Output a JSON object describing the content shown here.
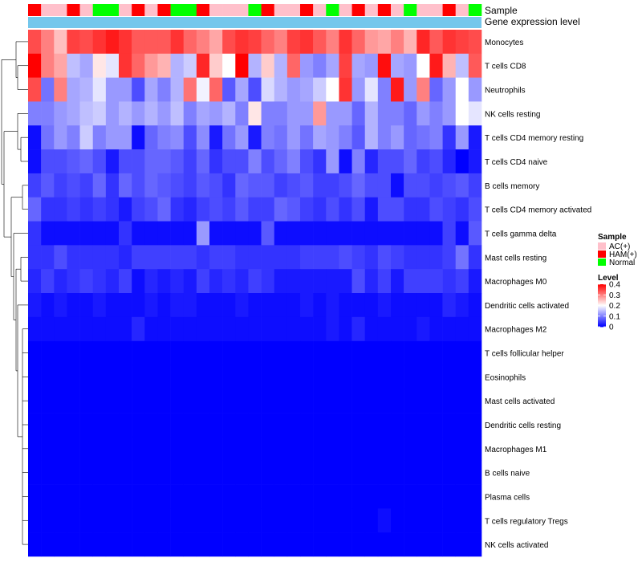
{
  "chart_data": {
    "type": "heatmap",
    "annotation_labels": {
      "sample": "Sample",
      "gene": "Gene expression level"
    },
    "rows": [
      "Monocytes",
      "T cells CD8",
      "Neutrophils",
      "NK cells resting",
      "T cells CD4 memory resting",
      "T cells CD4 naive",
      "B cells memory",
      "T cells CD4 memory activated",
      "T cells gamma delta",
      "Mast cells resting",
      "Macrophages M0",
      "Dendritic cells activated",
      "Macrophages M2",
      "T cells follicular helper",
      "Eosinophils",
      "Mast cells activated",
      "Dendritic cells resting",
      "Macrophages M1",
      "B cells naive",
      "Plasma cells",
      "T cells regulatory  Tregs",
      "NK cells activated"
    ],
    "sample_groups": [
      "HAM(+)",
      "AC(+)",
      "AC(+)",
      "HAM(+)",
      "AC(+)",
      "Normal",
      "Normal",
      "AC(+)",
      "HAM(+)",
      "AC(+)",
      "HAM(+)",
      "Normal",
      "Normal",
      "HAM(+)",
      "AC(+)",
      "AC(+)",
      "AC(+)",
      "Normal",
      "HAM(+)",
      "AC(+)",
      "AC(+)",
      "HAM(+)",
      "AC(+)",
      "Normal",
      "AC(+)",
      "HAM(+)",
      "AC(+)",
      "HAM(+)",
      "AC(+)",
      "Normal",
      "AC(+)",
      "AC(+)",
      "HAM(+)",
      "AC(+)",
      "Normal"
    ],
    "values": [
      [
        0.34,
        0.3,
        0.25,
        0.35,
        0.34,
        0.36,
        0.38,
        0.36,
        0.33,
        0.33,
        0.33,
        0.36,
        0.32,
        0.3,
        0.27,
        0.34,
        0.36,
        0.35,
        0.32,
        0.3,
        0.35,
        0.36,
        0.33,
        0.3,
        0.36,
        0.32,
        0.28,
        0.27,
        0.3,
        0.26,
        0.37,
        0.33,
        0.36,
        0.35,
        0.34
      ],
      [
        0.4,
        0.3,
        0.27,
        0.15,
        0.13,
        0.22,
        0.18,
        0.36,
        0.32,
        0.28,
        0.26,
        0.14,
        0.16,
        0.37,
        0.24,
        0.2,
        0.4,
        0.14,
        0.24,
        0.14,
        0.32,
        0.12,
        0.1,
        0.13,
        0.35,
        0.13,
        0.12,
        0.39,
        0.13,
        0.12,
        0.2,
        0.38,
        0.26,
        0.15,
        0.33
      ],
      [
        0.34,
        0.09,
        0.3,
        0.13,
        0.14,
        0.18,
        0.12,
        0.12,
        0.06,
        0.13,
        0.1,
        0.14,
        0.31,
        0.19,
        0.32,
        0.07,
        0.13,
        0.06,
        0.17,
        0.14,
        0.12,
        0.13,
        0.16,
        0.2,
        0.36,
        0.12,
        0.18,
        0.1,
        0.38,
        0.12,
        0.3,
        0.08,
        0.12,
        0.2,
        0.12
      ],
      [
        0.1,
        0.1,
        0.12,
        0.13,
        0.15,
        0.16,
        0.12,
        0.14,
        0.12,
        0.14,
        0.12,
        0.15,
        0.1,
        0.13,
        0.12,
        0.14,
        0.1,
        0.22,
        0.1,
        0.1,
        0.12,
        0.12,
        0.28,
        0.12,
        0.12,
        0.08,
        0.14,
        0.1,
        0.1,
        0.08,
        0.12,
        0.1,
        0.12,
        0.2,
        0.18
      ],
      [
        0.01,
        0.09,
        0.12,
        0.1,
        0.16,
        0.1,
        0.12,
        0.12,
        0.01,
        0.08,
        0.1,
        0.11,
        0.06,
        0.11,
        0.02,
        0.09,
        0.12,
        0.02,
        0.1,
        0.09,
        0.12,
        0.09,
        0.13,
        0.12,
        0.1,
        0.07,
        0.14,
        0.1,
        0.12,
        0.08,
        0.09,
        0.1,
        0.04,
        0.12,
        0.02
      ],
      [
        0.01,
        0.06,
        0.06,
        0.07,
        0.08,
        0.06,
        0.02,
        0.06,
        0.06,
        0.08,
        0.08,
        0.07,
        0.05,
        0.08,
        0.04,
        0.06,
        0.06,
        0.1,
        0.06,
        0.08,
        0.1,
        0.06,
        0.04,
        0.12,
        0.01,
        0.1,
        0.03,
        0.06,
        0.06,
        0.08,
        0.05,
        0.06,
        0.03,
        0.0,
        0.02
      ],
      [
        0.05,
        0.07,
        0.05,
        0.06,
        0.05,
        0.08,
        0.04,
        0.08,
        0.06,
        0.08,
        0.07,
        0.06,
        0.05,
        0.07,
        0.06,
        0.04,
        0.08,
        0.07,
        0.07,
        0.05,
        0.06,
        0.07,
        0.05,
        0.05,
        0.06,
        0.08,
        0.06,
        0.06,
        0.01,
        0.06,
        0.06,
        0.05,
        0.06,
        0.07,
        0.05
      ],
      [
        0.08,
        0.04,
        0.04,
        0.05,
        0.04,
        0.05,
        0.04,
        0.02,
        0.05,
        0.06,
        0.08,
        0.04,
        0.03,
        0.05,
        0.06,
        0.05,
        0.07,
        0.05,
        0.05,
        0.08,
        0.07,
        0.05,
        0.04,
        0.06,
        0.04,
        0.06,
        0.02,
        0.06,
        0.06,
        0.04,
        0.04,
        0.06,
        0.05,
        0.04,
        0.06
      ],
      [
        0.04,
        0.01,
        0.01,
        0.01,
        0.01,
        0.01,
        0.01,
        0.04,
        0.01,
        0.01,
        0.01,
        0.01,
        0.01,
        0.12,
        0.01,
        0.01,
        0.01,
        0.01,
        0.07,
        0.01,
        0.01,
        0.01,
        0.01,
        0.01,
        0.01,
        0.01,
        0.01,
        0.01,
        0.01,
        0.01,
        0.01,
        0.01,
        0.05,
        0.01,
        0.07
      ],
      [
        0.04,
        0.04,
        0.06,
        0.04,
        0.04,
        0.04,
        0.04,
        0.03,
        0.05,
        0.05,
        0.05,
        0.05,
        0.05,
        0.04,
        0.05,
        0.05,
        0.04,
        0.04,
        0.04,
        0.04,
        0.04,
        0.05,
        0.05,
        0.05,
        0.06,
        0.05,
        0.04,
        0.06,
        0.05,
        0.04,
        0.04,
        0.04,
        0.05,
        0.09,
        0.04
      ],
      [
        0.03,
        0.05,
        0.03,
        0.04,
        0.05,
        0.04,
        0.03,
        0.05,
        0.01,
        0.03,
        0.02,
        0.03,
        0.02,
        0.05,
        0.03,
        0.04,
        0.03,
        0.05,
        0.04,
        0.02,
        0.02,
        0.02,
        0.02,
        0.02,
        0.02,
        0.06,
        0.03,
        0.05,
        0.02,
        0.05,
        0.05,
        0.05,
        0.04,
        0.05,
        0.02
      ],
      [
        0.02,
        0.01,
        0.02,
        0.01,
        0.01,
        0.02,
        0.01,
        0.01,
        0.01,
        0.02,
        0.01,
        0.02,
        0.02,
        0.01,
        0.01,
        0.01,
        0.02,
        0.01,
        0.01,
        0.01,
        0.01,
        0.02,
        0.01,
        0.02,
        0.01,
        0.01,
        0.01,
        0.02,
        0.01,
        0.01,
        0.01,
        0.01,
        0.03,
        0.02,
        0.01
      ],
      [
        0.01,
        0.01,
        0.01,
        0.01,
        0.01,
        0.01,
        0.01,
        0.01,
        0.03,
        0.01,
        0.01,
        0.01,
        0.01,
        0.01,
        0.01,
        0.01,
        0.01,
        0.01,
        0.01,
        0.01,
        0.01,
        0.01,
        0.01,
        0.02,
        0.01,
        0.03,
        0.01,
        0.01,
        0.01,
        0.01,
        0.02,
        0.01,
        0.01,
        0.01,
        0.01
      ],
      [
        0.0,
        0.0,
        0.0,
        0.0,
        0.0,
        0.0,
        0.0,
        0.0,
        0.0,
        0.0,
        0.0,
        0.0,
        0.0,
        0.0,
        0.0,
        0.0,
        0.0,
        0.0,
        0.0,
        0.0,
        0.0,
        0.0,
        0.0,
        0.0,
        0.0,
        0.0,
        0.0,
        0.0,
        0.0,
        0.0,
        0.0,
        0.0,
        0.0,
        0.0,
        0.0
      ],
      [
        0.0,
        0.0,
        0.0,
        0.0,
        0.0,
        0.0,
        0.0,
        0.0,
        0.0,
        0.0,
        0.0,
        0.0,
        0.0,
        0.0,
        0.0,
        0.0,
        0.0,
        0.0,
        0.0,
        0.0,
        0.0,
        0.0,
        0.0,
        0.0,
        0.0,
        0.0,
        0.0,
        0.0,
        0.0,
        0.0,
        0.0,
        0.0,
        0.0,
        0.0,
        0.0
      ],
      [
        0.0,
        0.0,
        0.0,
        0.0,
        0.0,
        0.0,
        0.0,
        0.0,
        0.0,
        0.0,
        0.0,
        0.0,
        0.0,
        0.0,
        0.0,
        0.0,
        0.0,
        0.0,
        0.0,
        0.0,
        0.0,
        0.0,
        0.0,
        0.0,
        0.0,
        0.0,
        0.0,
        0.0,
        0.0,
        0.0,
        0.0,
        0.0,
        0.0,
        0.0,
        0.0
      ],
      [
        0.0,
        0.0,
        0.0,
        0.0,
        0.0,
        0.0,
        0.0,
        0.0,
        0.0,
        0.0,
        0.0,
        0.0,
        0.0,
        0.0,
        0.0,
        0.0,
        0.0,
        0.0,
        0.0,
        0.0,
        0.0,
        0.0,
        0.0,
        0.0,
        0.0,
        0.0,
        0.0,
        0.0,
        0.0,
        0.0,
        0.0,
        0.0,
        0.0,
        0.0,
        0.0
      ],
      [
        0.0,
        0.0,
        0.0,
        0.0,
        0.0,
        0.0,
        0.0,
        0.0,
        0.0,
        0.0,
        0.0,
        0.0,
        0.0,
        0.0,
        0.0,
        0.0,
        0.0,
        0.0,
        0.0,
        0.0,
        0.0,
        0.0,
        0.0,
        0.0,
        0.0,
        0.0,
        0.0,
        0.0,
        0.0,
        0.0,
        0.0,
        0.0,
        0.0,
        0.0,
        0.0
      ],
      [
        0.0,
        0.0,
        0.0,
        0.0,
        0.0,
        0.0,
        0.0,
        0.0,
        0.0,
        0.0,
        0.0,
        0.0,
        0.0,
        0.0,
        0.0,
        0.0,
        0.0,
        0.0,
        0.0,
        0.0,
        0.0,
        0.0,
        0.0,
        0.0,
        0.0,
        0.0,
        0.0,
        0.0,
        0.0,
        0.0,
        0.0,
        0.0,
        0.0,
        0.0,
        0.0
      ],
      [
        0.0,
        0.0,
        0.0,
        0.0,
        0.0,
        0.0,
        0.0,
        0.0,
        0.0,
        0.0,
        0.0,
        0.0,
        0.0,
        0.0,
        0.0,
        0.0,
        0.0,
        0.0,
        0.0,
        0.0,
        0.0,
        0.0,
        0.0,
        0.0,
        0.0,
        0.0,
        0.0,
        0.0,
        0.0,
        0.0,
        0.0,
        0.0,
        0.0,
        0.0,
        0.0
      ],
      [
        0.0,
        0.0,
        0.0,
        0.0,
        0.0,
        0.0,
        0.0,
        0.0,
        0.0,
        0.0,
        0.0,
        0.0,
        0.0,
        0.0,
        0.0,
        0.0,
        0.0,
        0.0,
        0.0,
        0.0,
        0.0,
        0.0,
        0.0,
        0.0,
        0.0,
        0.0,
        0.0,
        0.01,
        0.0,
        0.0,
        0.0,
        0.0,
        0.0,
        0.0,
        0.0
      ],
      [
        0.0,
        0.0,
        0.0,
        0.0,
        0.0,
        0.0,
        0.0,
        0.0,
        0.0,
        0.0,
        0.0,
        0.0,
        0.0,
        0.0,
        0.0,
        0.0,
        0.0,
        0.0,
        0.0,
        0.0,
        0.0,
        0.0,
        0.0,
        0.0,
        0.0,
        0.0,
        0.0,
        0.0,
        0.0,
        0.0,
        0.0,
        0.0,
        0.0,
        0.0,
        0.0
      ]
    ],
    "gene_expression_color": "#74c7ec",
    "legend": {
      "sample_title": "Sample",
      "sample_entries": [
        {
          "label": "AC(+)",
          "color": "#ffc0cb"
        },
        {
          "label": "HAM(+)",
          "color": "#ff0000"
        },
        {
          "label": "Normal",
          "color": "#00ff00"
        }
      ],
      "level_title": "Level",
      "level_ticks": [
        "0.4",
        "0.3",
        "0.2",
        "0.1",
        "0"
      ],
      "level_range": [
        0,
        0.4
      ]
    },
    "color_scale": {
      "low": "#0000ff",
      "mid": "#ffffff",
      "high": "#ff0000",
      "mid_value": 0.2
    }
  }
}
